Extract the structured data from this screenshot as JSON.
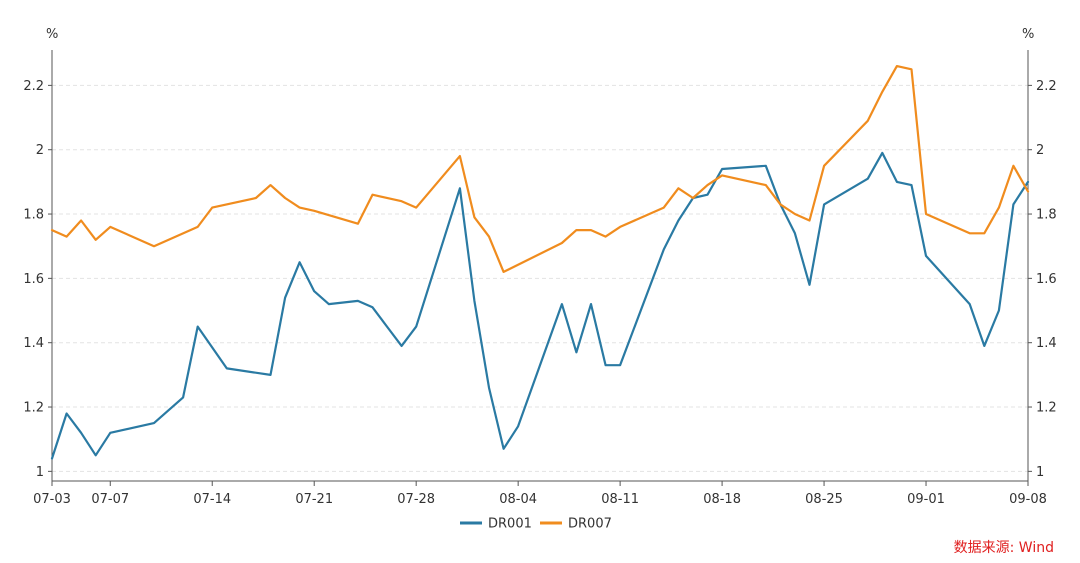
{
  "chart_data": {
    "type": "line",
    "title": "",
    "xlabel": "",
    "y_unit_left": "%",
    "y_unit_right": "%",
    "ylim": [
      1.0,
      2.3
    ],
    "y_ticks": [
      "1",
      "1.2",
      "1.4",
      "1.6",
      "1.8",
      "2",
      "2.2"
    ],
    "y_tick_values": [
      1.0,
      1.2,
      1.4,
      1.6,
      1.8,
      2.0,
      2.2
    ],
    "x_tick_labels": [
      "07-03",
      "07-07",
      "07-14",
      "07-21",
      "07-28",
      "08-04",
      "08-11",
      "08-18",
      "08-25",
      "09-01",
      "09-08"
    ],
    "x_tick_days": [
      0,
      4,
      11,
      18,
      25,
      32,
      39,
      46,
      53,
      60,
      67
    ],
    "x_range_days": [
      0,
      67
    ],
    "grid": "horizontal-dashed",
    "legend_position": "bottom-center",
    "series": [
      {
        "name": "DR001",
        "color": "#2a7aa3",
        "x_days": [
          0,
          1,
          2,
          3,
          4,
          7,
          9,
          10,
          12,
          15,
          16,
          17,
          18,
          19,
          21,
          22,
          23,
          24,
          25,
          28,
          29,
          30,
          31,
          32,
          35,
          36,
          37,
          38,
          39,
          42,
          43,
          44,
          45,
          46,
          49,
          50,
          51,
          52,
          53,
          56,
          57,
          58,
          59,
          60,
          63,
          64,
          65,
          66,
          67
        ],
        "values": [
          1.04,
          1.18,
          1.12,
          1.05,
          1.12,
          1.15,
          1.23,
          1.45,
          1.32,
          1.3,
          1.54,
          1.65,
          1.56,
          1.52,
          1.53,
          1.51,
          1.45,
          1.39,
          1.45,
          1.88,
          1.53,
          1.26,
          1.07,
          1.14,
          1.52,
          1.37,
          1.52,
          1.33,
          1.33,
          1.69,
          1.78,
          1.85,
          1.86,
          1.94,
          1.95,
          1.83,
          1.74,
          1.58,
          1.83,
          1.91,
          1.99,
          1.9,
          1.89,
          1.67,
          1.52,
          1.39,
          1.5,
          1.83,
          1.9
        ]
      },
      {
        "name": "DR007",
        "color": "#f08c1e",
        "x_days": [
          0,
          1,
          2,
          3,
          4,
          7,
          10,
          11,
          14,
          15,
          16,
          17,
          18,
          21,
          22,
          24,
          25,
          28,
          29,
          30,
          31,
          35,
          36,
          37,
          38,
          39,
          42,
          43,
          44,
          45,
          46,
          49,
          50,
          51,
          52,
          53,
          56,
          57,
          58,
          59,
          60,
          63,
          64,
          65,
          66,
          67
        ],
        "values": [
          1.75,
          1.73,
          1.78,
          1.72,
          1.76,
          1.7,
          1.76,
          1.82,
          1.85,
          1.89,
          1.85,
          1.82,
          1.81,
          1.77,
          1.86,
          1.84,
          1.82,
          1.98,
          1.79,
          1.73,
          1.62,
          1.71,
          1.75,
          1.75,
          1.73,
          1.76,
          1.82,
          1.88,
          1.85,
          1.89,
          1.92,
          1.89,
          1.83,
          1.8,
          1.78,
          1.95,
          2.09,
          2.18,
          2.26,
          2.25,
          1.8,
          1.74,
          1.74,
          1.82,
          1.95,
          1.87
        ]
      }
    ],
    "source_note": "数据来源: Wind"
  }
}
